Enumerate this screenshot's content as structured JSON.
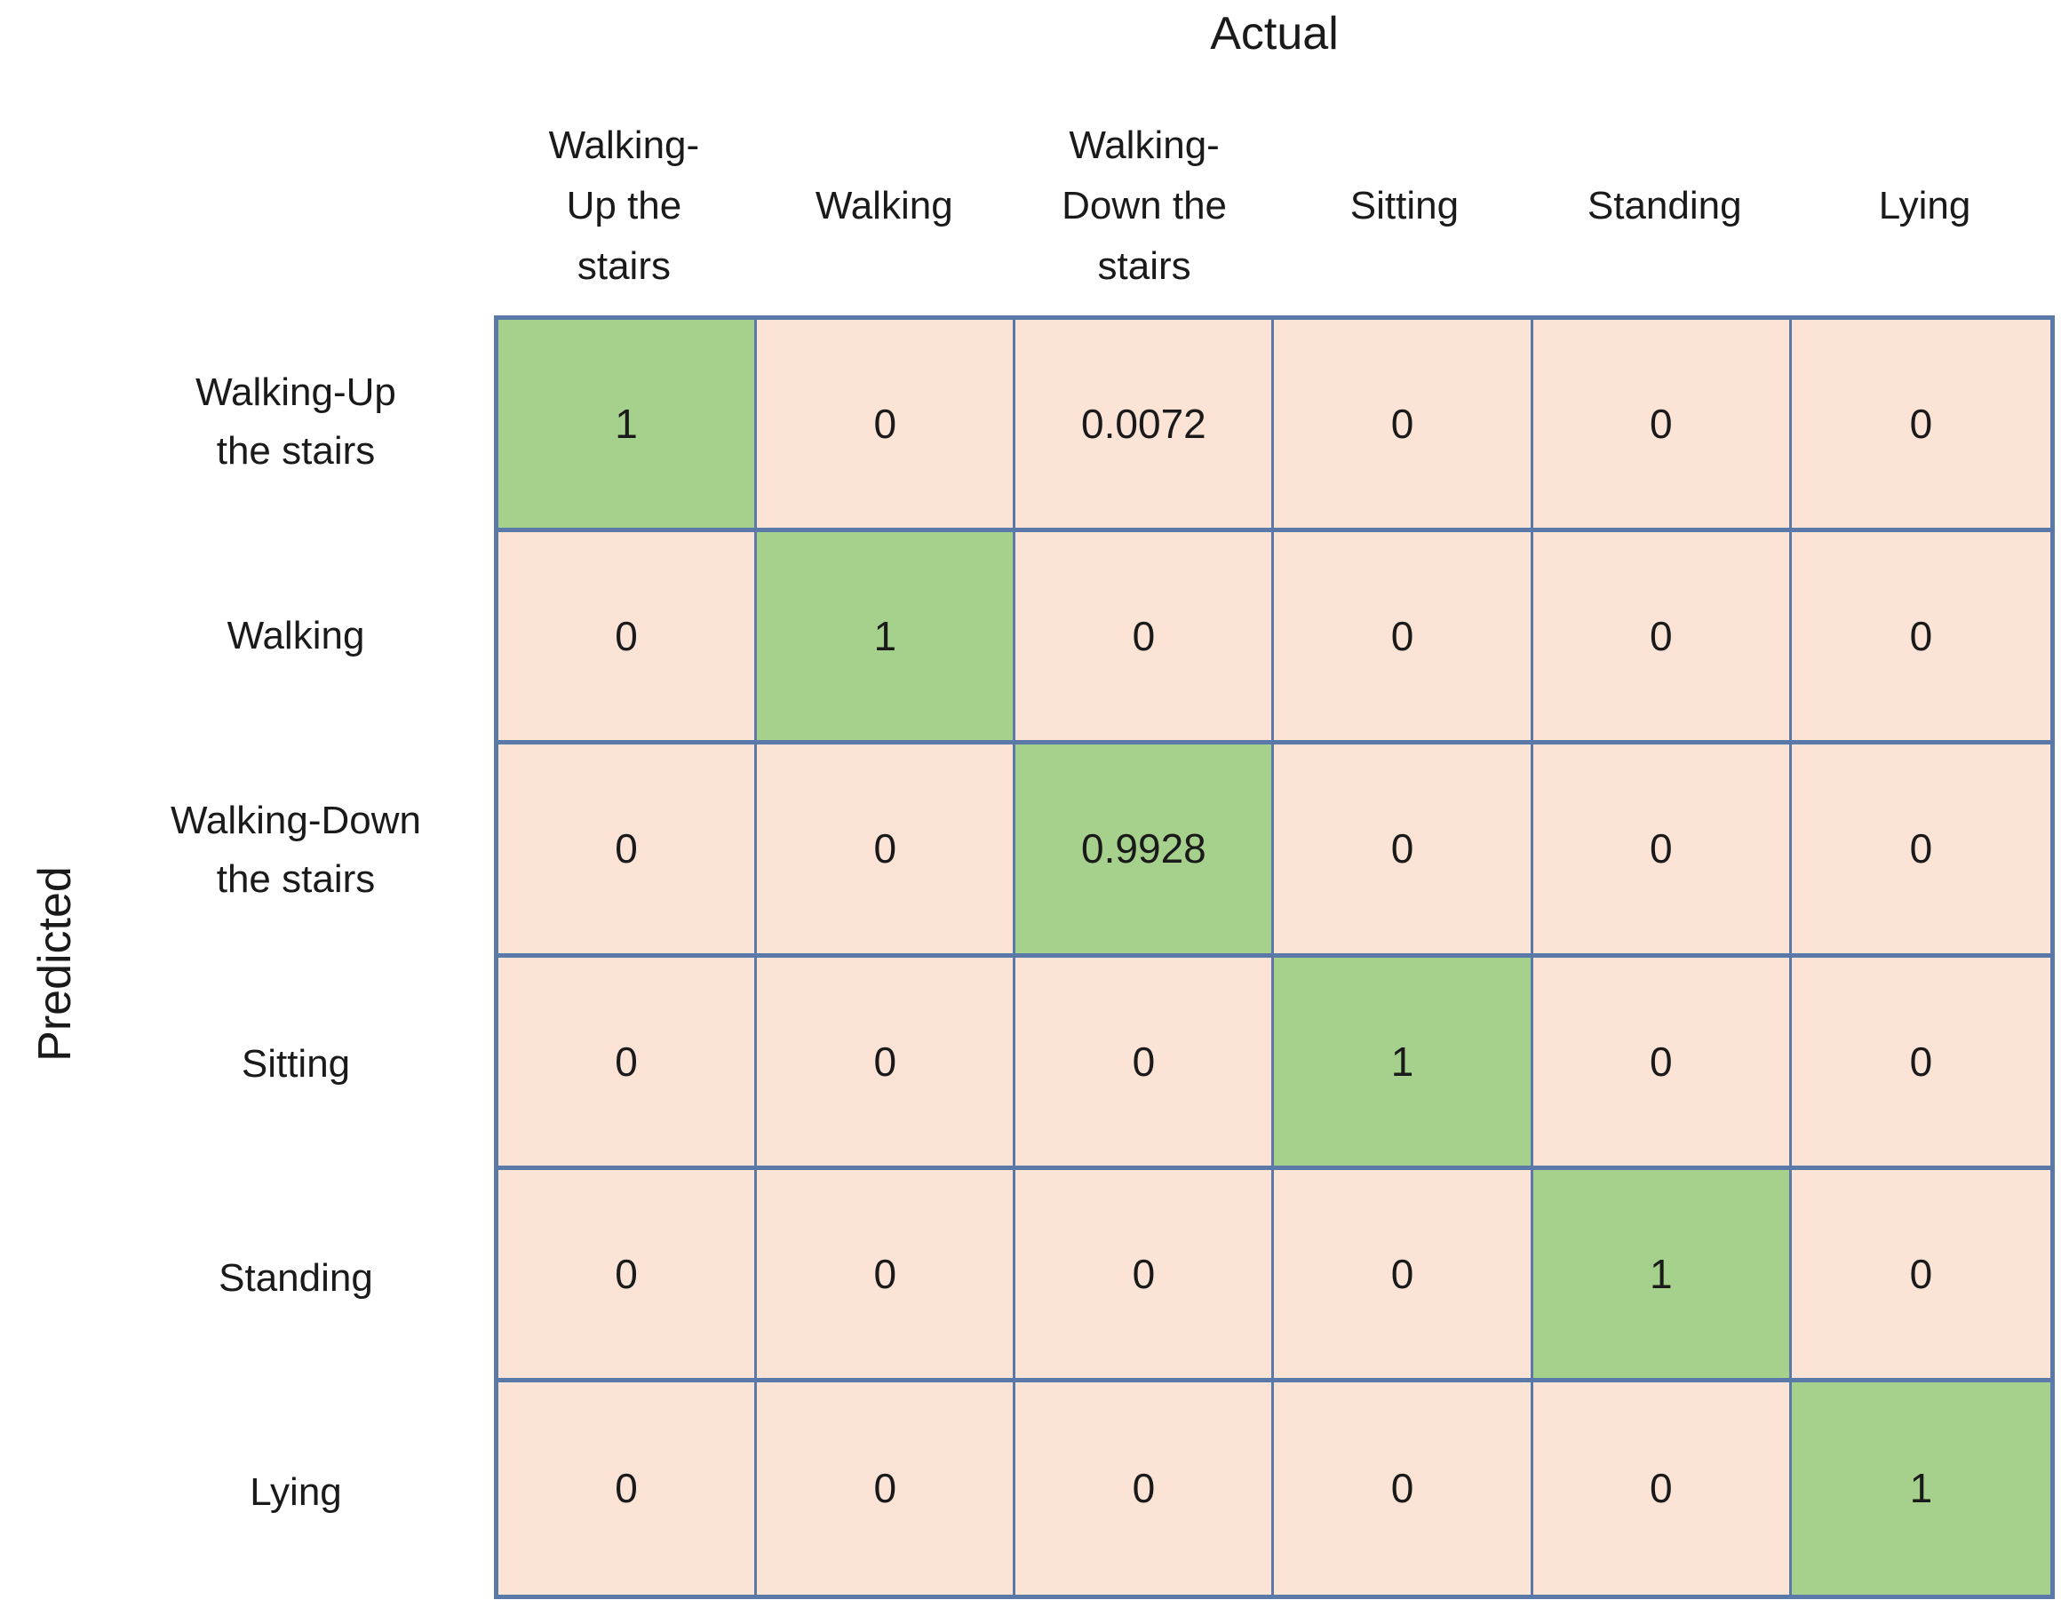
{
  "axis_titles": {
    "top": "Actual",
    "left": "Predicted"
  },
  "colors": {
    "diagonal": "#a5d18c",
    "off_diagonal": "#fbe4d6",
    "grid_border": "#5b79a8",
    "text": "#1a1a1a"
  },
  "chart_data": {
    "type": "heatmap",
    "title": "Actual",
    "xlabel": "Actual",
    "ylabel": "Predicted",
    "x_categories": [
      "Walking-Up the stairs",
      "Walking",
      "Walking-Down the stairs",
      "Sitting",
      "Standing",
      "Lying"
    ],
    "y_categories": [
      "Walking-Up the stairs",
      "Walking",
      "Walking-Down the stairs",
      "Sitting",
      "Standing",
      "Lying"
    ],
    "x_display_labels": [
      "Walking-\nUp the\nstairs",
      "Walking",
      "Walking-\nDown the\nstairs",
      "Sitting",
      "Standing",
      "Lying"
    ],
    "y_display_labels": [
      "Walking-Up\nthe stairs",
      "Walking",
      "Walking-Down\nthe stairs",
      "Sitting",
      "Standing",
      "Lying"
    ],
    "values": [
      [
        1,
        0,
        0.0072,
        0,
        0,
        0
      ],
      [
        0,
        1,
        0,
        0,
        0,
        0
      ],
      [
        0,
        0,
        0.9928,
        0,
        0,
        0
      ],
      [
        0,
        0,
        0,
        1,
        0,
        0
      ],
      [
        0,
        0,
        0,
        0,
        1,
        0
      ],
      [
        0,
        0,
        0,
        0,
        0,
        1
      ]
    ],
    "highlight": "diagonal",
    "legend": "none",
    "grid": "on"
  }
}
